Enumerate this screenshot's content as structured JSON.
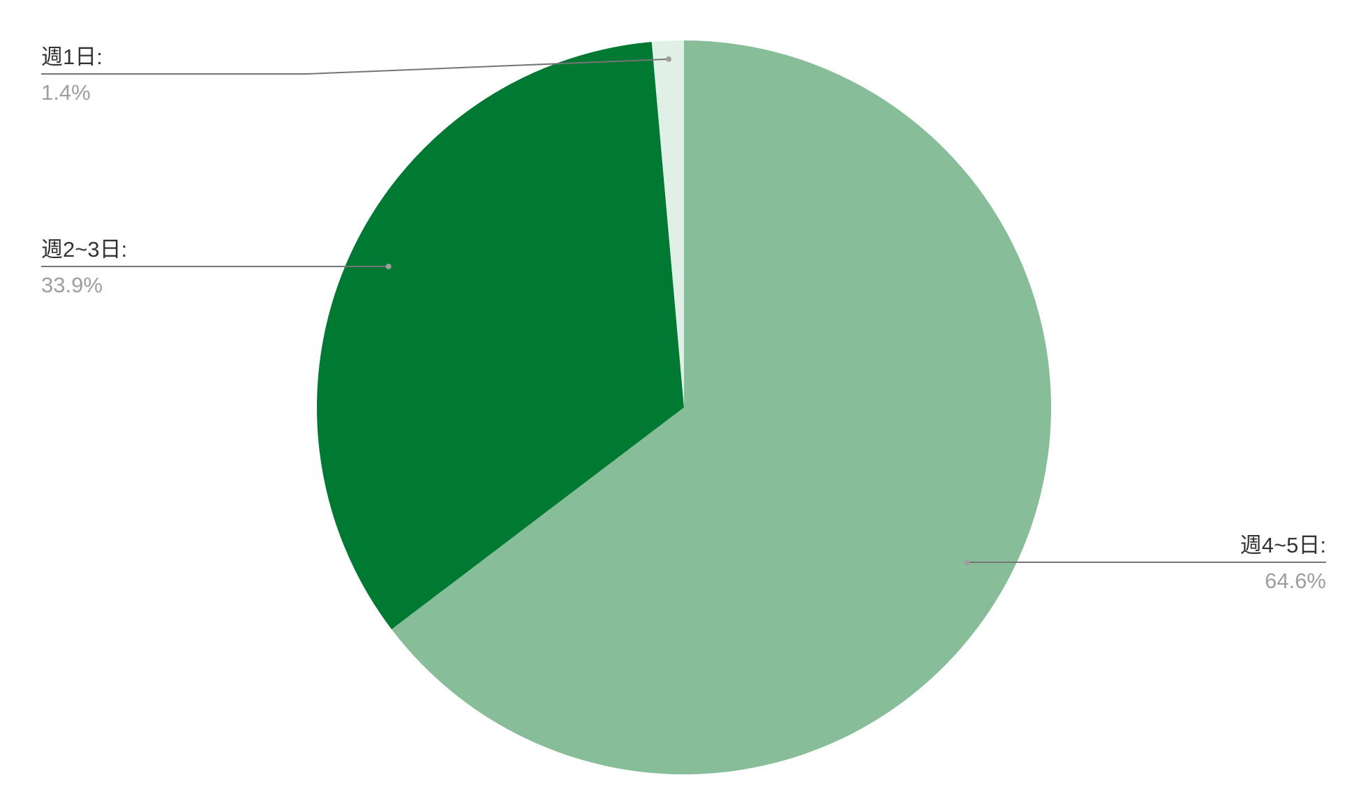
{
  "chart_data": {
    "type": "pie",
    "start": "12 o'clock",
    "direction": "clockwise",
    "slices": [
      {
        "label": "週4~5日:",
        "value": 64.6,
        "value_label": "64.6%",
        "color": "#87bd98"
      },
      {
        "label": "週2~3日:",
        "value": 33.9,
        "value_label": "33.9%",
        "color": "#007a33"
      },
      {
        "label": "週1日:",
        "value": 1.4,
        "value_label": "1.4%",
        "color": "#e0f0e6"
      }
    ],
    "legend": "none",
    "labels": "outside with leader lines"
  }
}
